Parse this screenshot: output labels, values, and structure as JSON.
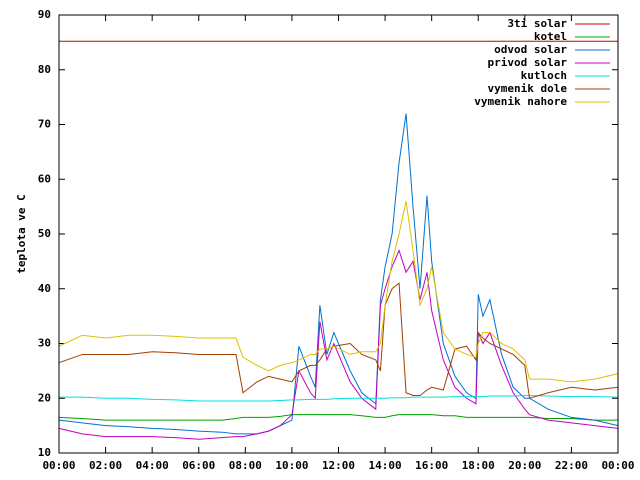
{
  "chart_data": {
    "type": "line",
    "y_label": "teplota ve C",
    "x": [
      0,
      1,
      2,
      3,
      4,
      5,
      6,
      7,
      7.6,
      7.9,
      8.5,
      9,
      9.5,
      10,
      10.3,
      10.8,
      11,
      11.2,
      11.5,
      11.8,
      12.5,
      13,
      13.6,
      13.8,
      14,
      14.3,
      14.6,
      14.9,
      15.2,
      15.5,
      15.8,
      16,
      16.5,
      17,
      17.5,
      17.9,
      18,
      18.2,
      18.5,
      19,
      19.5,
      20,
      20.2,
      21,
      22,
      23,
      24
    ],
    "xlim": [
      0,
      24
    ],
    "xticks": [
      {
        "value": 0,
        "label": "00:00"
      },
      {
        "value": 2,
        "label": "02:00"
      },
      {
        "value": 4,
        "label": "04:00"
      },
      {
        "value": 6,
        "label": "06:00"
      },
      {
        "value": 8,
        "label": "08:00"
      },
      {
        "value": 10,
        "label": "10:00"
      },
      {
        "value": 12,
        "label": "12:00"
      },
      {
        "value": 14,
        "label": "14:00"
      },
      {
        "value": 16,
        "label": "16:00"
      },
      {
        "value": 18,
        "label": "18:00"
      },
      {
        "value": 20,
        "label": "20:00"
      },
      {
        "value": 22,
        "label": "22:00"
      },
      {
        "value": 24,
        "label": "00:00"
      }
    ],
    "ylim": [
      10,
      90
    ],
    "yticks": [
      10,
      20,
      30,
      40,
      50,
      60,
      70,
      80,
      90
    ],
    "legend": "top-right",
    "series": [
      {
        "name": "3ti solar",
        "color": "#cc0000",
        "values": [
          85.2,
          85.2,
          85.2,
          85.2,
          85.2,
          85.2,
          85.2,
          85.2,
          85.2,
          85.2,
          85.2,
          85.2,
          85.2,
          85.2,
          85.2,
          85.2,
          85.2,
          85.2,
          85.2,
          85.2,
          85.2,
          85.2,
          85.2,
          85.2,
          85.2,
          85.2,
          85.2,
          85.2,
          85.2,
          85.2,
          85.2,
          85.2,
          85.2,
          85.2,
          85.2,
          85.2,
          85.2,
          85.2,
          85.2,
          85.2,
          85.2,
          85.2,
          85.2,
          85.2,
          85.2,
          85.2,
          85.2
        ]
      },
      {
        "name": "kotel",
        "color": "#00a000",
        "values": [
          16.5,
          16.3,
          16,
          16,
          16,
          16,
          16,
          16,
          16.3,
          16.5,
          16.5,
          16.5,
          16.7,
          17,
          17,
          17,
          17,
          17,
          17,
          17,
          17,
          16.8,
          16.5,
          16.5,
          16.5,
          16.8,
          17,
          17,
          17,
          17,
          17,
          17,
          16.8,
          16.8,
          16.5,
          16.5,
          16.5,
          16.5,
          16.5,
          16.5,
          16.5,
          16.5,
          16.5,
          16.3,
          16.3,
          16,
          16
        ]
      },
      {
        "name": "odvod solar",
        "color": "#0070d0",
        "values": [
          16,
          15.5,
          15,
          14.8,
          14.5,
          14.3,
          14,
          13.8,
          13.5,
          13.5,
          13.5,
          14,
          15,
          16,
          29.5,
          24,
          22,
          37,
          28,
          32,
          25,
          21,
          19,
          38,
          44,
          50,
          63,
          72,
          55,
          40,
          57,
          45,
          30,
          24,
          21,
          20,
          39,
          35,
          38,
          28,
          22,
          20,
          20,
          18,
          16.5,
          16,
          15
        ]
      },
      {
        "name": "privod solar",
        "color": "#c000c0",
        "values": [
          14.5,
          13.5,
          13,
          13,
          13,
          12.8,
          12.5,
          12.8,
          13,
          13,
          13.5,
          14,
          15,
          17,
          25,
          21,
          20,
          34,
          27,
          30,
          23,
          20,
          18,
          37,
          40,
          44,
          47,
          43,
          45,
          38,
          43,
          36,
          27,
          22,
          20,
          19,
          32,
          30,
          32,
          26,
          21,
          18,
          17,
          16,
          15.5,
          15,
          14.5
        ]
      },
      {
        "name": "kutloch",
        "color": "#00e0e0",
        "values": [
          20.2,
          20.2,
          20,
          20,
          19.8,
          19.7,
          19.5,
          19.5,
          19.5,
          19.5,
          19.5,
          19.5,
          19.6,
          19.7,
          19.7,
          19.8,
          19.8,
          19.8,
          19.8,
          19.9,
          20,
          20,
          20,
          20,
          20,
          20.1,
          20.1,
          20.1,
          20.2,
          20.2,
          20.2,
          20.2,
          20.2,
          20.3,
          20.3,
          20.3,
          20.3,
          20.3,
          20.4,
          20.4,
          20.4,
          20.5,
          20.5,
          20.4,
          20.3,
          20.3,
          20.2
        ]
      },
      {
        "name": "vymenik dole",
        "color": "#a04000",
        "values": [
          26.5,
          28,
          28,
          28,
          28.5,
          28.3,
          28,
          28,
          28,
          21,
          23,
          24,
          23.5,
          23,
          25,
          26,
          26,
          27,
          29,
          29.5,
          30,
          28,
          27,
          25,
          37,
          40,
          41,
          21,
          20.5,
          20.5,
          21.5,
          22,
          21.5,
          29,
          29.5,
          27,
          32,
          31,
          30,
          29,
          28,
          26,
          20,
          21,
          22,
          21.5,
          22
        ]
      },
      {
        "name": "vymenik nahore",
        "color": "#e0c000",
        "values": [
          29.5,
          31.5,
          31,
          31.5,
          31.5,
          31.3,
          31,
          31,
          31,
          27.5,
          26,
          25,
          26,
          26.5,
          27,
          28,
          28,
          29,
          29,
          29.5,
          28,
          28.5,
          28.5,
          30,
          37,
          45,
          50,
          56,
          47,
          37,
          40,
          44,
          32,
          29,
          28,
          27.5,
          30,
          32,
          32,
          30,
          29,
          27,
          23.5,
          23.5,
          23,
          23.5,
          24.5
        ]
      }
    ]
  }
}
